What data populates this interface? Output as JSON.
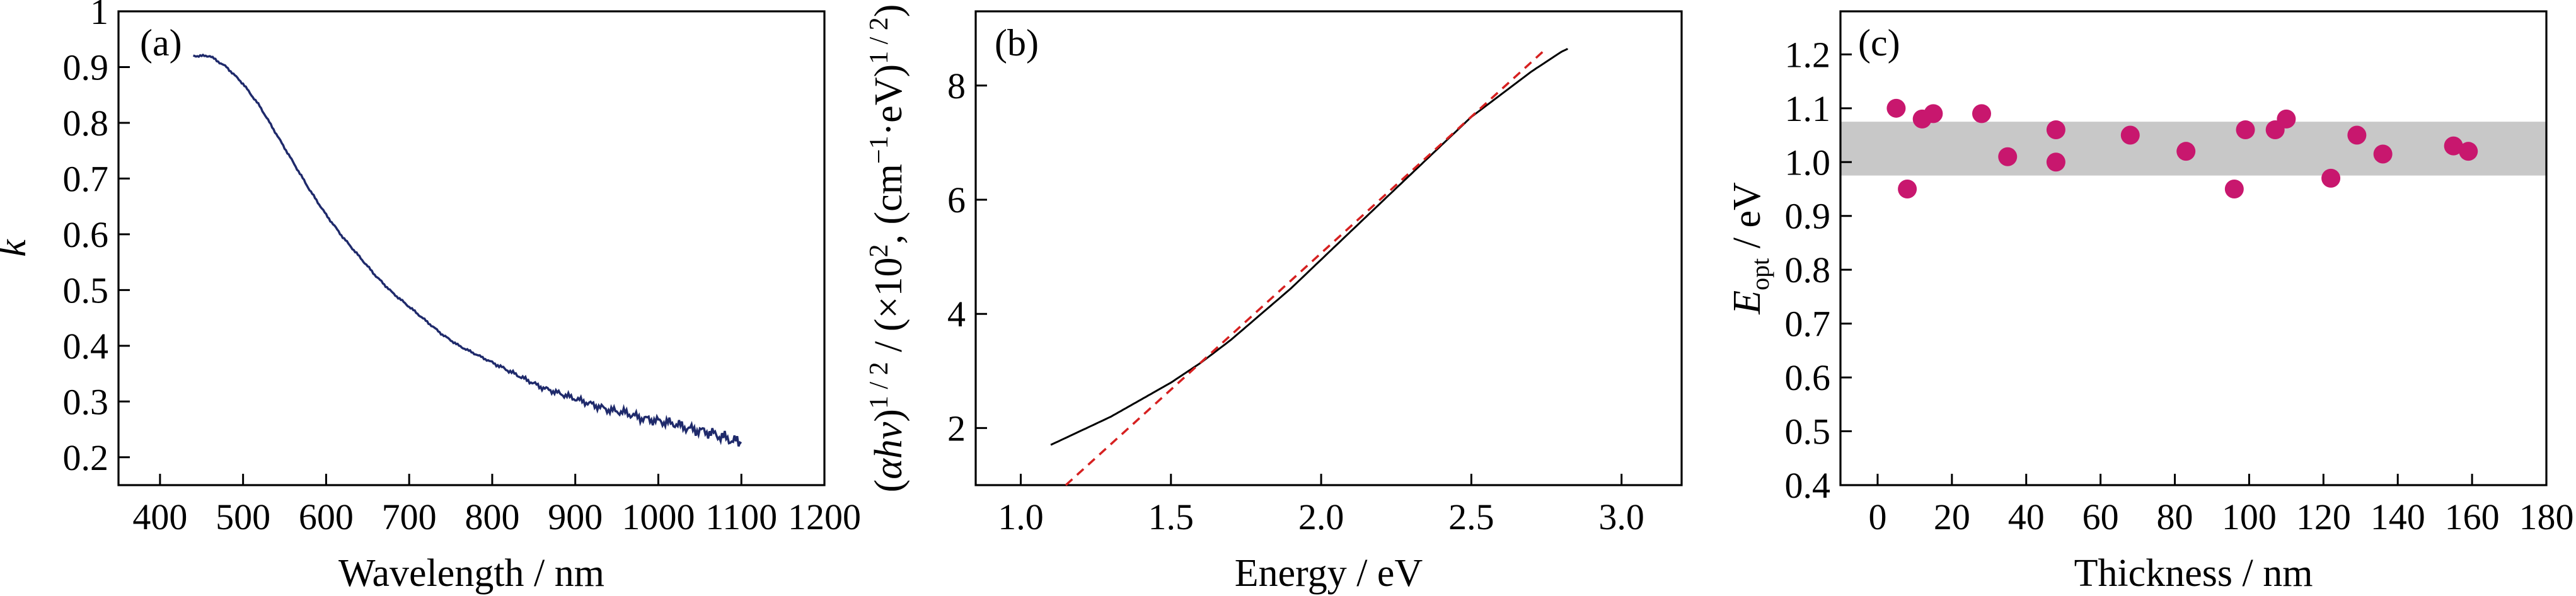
{
  "chart_data": [
    {
      "type": "line",
      "panel_label": "(a)",
      "xlabel": "Wavelength / nm",
      "ylabel": "k",
      "xlim": [
        350,
        1200
      ],
      "ylim": [
        0.15,
        1.0
      ],
      "xticks": [
        400,
        500,
        600,
        700,
        800,
        900,
        1000,
        1100,
        1200
      ],
      "yticks": [
        0.2,
        0.3,
        0.4,
        0.5,
        0.6,
        0.7,
        0.8,
        0.9,
        1.0
      ],
      "series": [
        {
          "color": "#1f2a6b",
          "x": [
            440,
            460,
            480,
            500,
            520,
            540,
            560,
            580,
            600,
            620,
            640,
            660,
            680,
            700,
            720,
            740,
            760,
            780,
            800,
            820,
            840,
            860,
            880,
            900,
            920,
            940,
            960,
            980,
            1000,
            1020,
            1040,
            1060,
            1080,
            1100
          ],
          "y": [
            0.92,
            0.92,
            0.9,
            0.87,
            0.83,
            0.78,
            0.73,
            0.68,
            0.635,
            0.595,
            0.56,
            0.525,
            0.495,
            0.47,
            0.445,
            0.42,
            0.4,
            0.385,
            0.37,
            0.355,
            0.34,
            0.325,
            0.315,
            0.305,
            0.295,
            0.285,
            0.28,
            0.27,
            0.265,
            0.26,
            0.25,
            0.245,
            0.235,
            0.225
          ]
        }
      ]
    },
    {
      "type": "line",
      "panel_label": "(b)",
      "xlabel": "Energy / eV",
      "ylabel_parts": {
        "open": "(",
        "alpha": "α",
        "hv": "hν",
        "close": ")",
        "sup1": "1 / 2",
        "mid": " / (×10",
        "sup2": "2",
        "unit": ", (cm",
        "sup3": "−1",
        "unit2": "·eV)",
        "sup4": "1 / 2",
        "end": ")"
      },
      "xlim": [
        0.85,
        3.2
      ],
      "ylim": [
        1.0,
        9.3
      ],
      "xticks": [
        "1.0",
        "1.5",
        "2.0",
        "2.5",
        "3.0"
      ],
      "yticks": [
        2,
        4,
        6,
        8
      ],
      "series": [
        {
          "style": "solid",
          "color": "#000000",
          "x": [
            1.1,
            1.2,
            1.3,
            1.4,
            1.5,
            1.6,
            1.7,
            1.8,
            1.9,
            2.0,
            2.1,
            2.2,
            2.3,
            2.4,
            2.5,
            2.6,
            2.7,
            2.8,
            2.82
          ],
          "y": [
            1.7,
            1.95,
            2.2,
            2.5,
            2.8,
            3.15,
            3.55,
            4.0,
            4.45,
            4.95,
            5.45,
            5.95,
            6.45,
            6.95,
            7.45,
            7.85,
            8.25,
            8.6,
            8.65
          ]
        },
        {
          "style": "dashed",
          "color": "#d62020",
          "x": [
            1.15,
            2.75
          ],
          "y": [
            1.0,
            8.65
          ]
        }
      ]
    },
    {
      "type": "scatter",
      "panel_label": "(c)",
      "xlabel": "Thickness / nm",
      "ylabel_main": "E",
      "ylabel_sub": "opt",
      "ylabel_unit": " / eV",
      "xlim": [
        -10,
        180
      ],
      "ylim": [
        0.4,
        1.28
      ],
      "xticks": [
        0,
        20,
        40,
        60,
        80,
        100,
        120,
        140,
        160,
        180
      ],
      "yticks": [
        "0.4",
        "0.5",
        "0.6",
        "0.7",
        "0.8",
        "0.9",
        "1.0",
        "1.1",
        "1.2"
      ],
      "band": [
        0.975,
        1.075
      ],
      "band_color": "#c8c8c8",
      "point_color": "#c8176e",
      "series": [
        {
          "x": [
            5,
            8,
            12,
            15,
            28,
            35,
            48,
            48,
            68,
            83,
            96,
            99,
            107,
            110,
            122,
            129,
            136,
            155,
            159
          ],
          "y": [
            1.1,
            0.95,
            1.08,
            1.09,
            1.09,
            1.01,
            1.06,
            1.0,
            1.05,
            1.02,
            0.95,
            1.06,
            1.06,
            1.08,
            0.97,
            1.05,
            1.015,
            1.03,
            1.02
          ]
        }
      ]
    }
  ]
}
